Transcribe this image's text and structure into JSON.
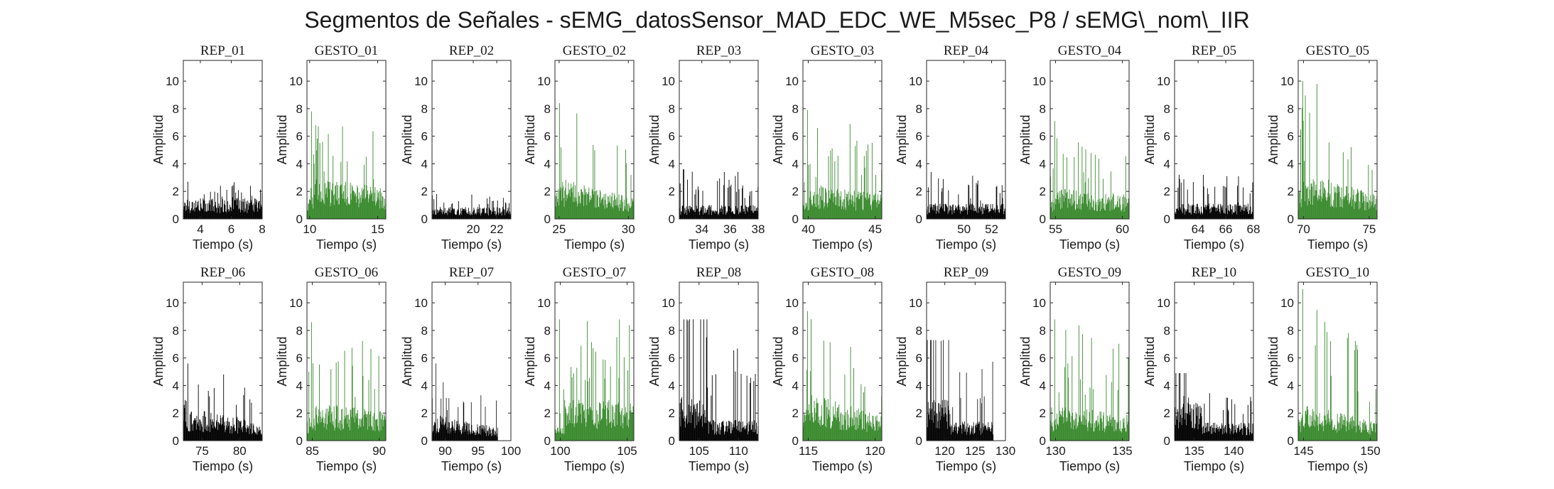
{
  "figure": {
    "title": "Segmentos de Señales - sEMG_datosSensor_MAD_EDC_WE_M5sec_P8 / sEMG\\_nom\\_IIR"
  },
  "colors": {
    "rep": "#000000",
    "gesto": "#3a8a2e",
    "axis": "#262626"
  },
  "chart_data": [
    {
      "type": "bar",
      "title": "REP_01",
      "xlabel": "Tiempo (s)",
      "ylabel": "Amplitud",
      "xlim": [
        2.9,
        8.0
      ],
      "ylim": [
        0,
        11.5
      ],
      "xticks": [
        4,
        6,
        8
      ],
      "yticks": [
        0,
        2,
        4,
        6,
        8,
        10
      ],
      "data_x_range": [
        2.9,
        8.0
      ],
      "series": [
        {
          "name": "REP_01",
          "color": "black",
          "baseline": 1.2,
          "peak": 2.7,
          "profile": "flat"
        }
      ]
    },
    {
      "type": "bar",
      "title": "GESTO_01",
      "xlabel": "Tiempo (s)",
      "ylabel": "Amplitud",
      "xlim": [
        9.8,
        15.6
      ],
      "ylim": [
        0,
        11.5
      ],
      "xticks": [
        10,
        15
      ],
      "yticks": [
        0,
        2,
        4,
        6,
        8,
        10
      ],
      "data_x_range": [
        9.8,
        15.6
      ],
      "series": [
        {
          "name": "GESTO_01",
          "color": "green",
          "baseline": 2.4,
          "peak": 7.8,
          "profile": "early"
        }
      ]
    },
    {
      "type": "bar",
      "title": "REP_02",
      "xlabel": "Tiempo (s)",
      "ylabel": "Amplitud",
      "xlim": [
        16.5,
        23.2
      ],
      "ylim": [
        0,
        11.5
      ],
      "xticks": [
        20,
        22
      ],
      "yticks": [
        0,
        2,
        4,
        6,
        8,
        10
      ],
      "data_x_range": [
        16.5,
        23.2
      ],
      "series": [
        {
          "name": "REP_02",
          "color": "black",
          "baseline": 0.7,
          "peak": 1.8,
          "profile": "flat"
        }
      ]
    },
    {
      "type": "bar",
      "title": "GESTO_02",
      "xlabel": "Tiempo (s)",
      "ylabel": "Amplitud",
      "xlim": [
        24.7,
        30.4
      ],
      "ylim": [
        0,
        11.5
      ],
      "xticks": [
        25,
        30
      ],
      "yticks": [
        0,
        2,
        4,
        6,
        8,
        10
      ],
      "data_x_range": [
        24.7,
        30.4
      ],
      "series": [
        {
          "name": "GESTO_02",
          "color": "green",
          "baseline": 2.2,
          "peak": 8.4,
          "profile": "decay"
        }
      ]
    },
    {
      "type": "bar",
      "title": "REP_03",
      "xlabel": "Tiempo (s)",
      "ylabel": "Amplitud",
      "xlim": [
        32.4,
        38.0
      ],
      "ylim": [
        0,
        11.5
      ],
      "xticks": [
        34,
        36,
        38
      ],
      "yticks": [
        0,
        2,
        4,
        6,
        8,
        10
      ],
      "data_x_range": [
        32.4,
        38.0
      ],
      "series": [
        {
          "name": "REP_03",
          "color": "black",
          "baseline": 0.8,
          "peak": 3.6,
          "profile": "flat"
        }
      ]
    },
    {
      "type": "bar",
      "title": "GESTO_03",
      "xlabel": "Tiempo (s)",
      "ylabel": "Amplitud",
      "xlim": [
        39.6,
        45.5
      ],
      "ylim": [
        0,
        11.5
      ],
      "xticks": [
        40,
        45
      ],
      "yticks": [
        0,
        2,
        4,
        6,
        8,
        10
      ],
      "data_x_range": [
        39.6,
        45.5
      ],
      "series": [
        {
          "name": "GESTO_03",
          "color": "green",
          "baseline": 2.0,
          "peak": 7.9,
          "profile": "early"
        }
      ]
    },
    {
      "type": "bar",
      "title": "REP_04",
      "xlabel": "Tiempo (s)",
      "ylabel": "Amplitud",
      "xlim": [
        47.3,
        53.0
      ],
      "ylim": [
        0,
        11.5
      ],
      "xticks": [
        50,
        52
      ],
      "yticks": [
        0,
        2,
        4,
        6,
        8,
        10
      ],
      "data_x_range": [
        47.3,
        53.0
      ],
      "series": [
        {
          "name": "REP_04",
          "color": "black",
          "baseline": 0.9,
          "peak": 3.4,
          "profile": "flat"
        }
      ]
    },
    {
      "type": "bar",
      "title": "GESTO_04",
      "xlabel": "Tiempo (s)",
      "ylabel": "Amplitud",
      "xlim": [
        54.6,
        60.5
      ],
      "ylim": [
        0,
        11.5
      ],
      "xticks": [
        55,
        60
      ],
      "yticks": [
        0,
        2,
        4,
        6,
        8,
        10
      ],
      "data_x_range": [
        54.6,
        60.5
      ],
      "series": [
        {
          "name": "GESTO_04",
          "color": "green",
          "baseline": 1.8,
          "peak": 7.1,
          "profile": "early"
        }
      ]
    },
    {
      "type": "bar",
      "title": "REP_05",
      "xlabel": "Tiempo (s)",
      "ylabel": "Amplitud",
      "xlim": [
        62.3,
        68.0
      ],
      "ylim": [
        0,
        11.5
      ],
      "xticks": [
        64,
        66,
        68
      ],
      "yticks": [
        0,
        2,
        4,
        6,
        8,
        10
      ],
      "data_x_range": [
        62.3,
        68.0
      ],
      "series": [
        {
          "name": "REP_05",
          "color": "black",
          "baseline": 0.9,
          "peak": 3.2,
          "profile": "flat"
        }
      ]
    },
    {
      "type": "bar",
      "title": "GESTO_05",
      "xlabel": "Tiempo (s)",
      "ylabel": "Amplitud",
      "xlim": [
        69.6,
        75.6
      ],
      "ylim": [
        0,
        11.5
      ],
      "xticks": [
        70,
        75
      ],
      "yticks": [
        0,
        2,
        4,
        6,
        8,
        10
      ],
      "data_x_range": [
        69.6,
        75.6
      ],
      "series": [
        {
          "name": "GESTO_05",
          "color": "green",
          "baseline": 2.6,
          "peak": 10.0,
          "profile": "decay"
        }
      ]
    },
    {
      "type": "bar",
      "title": "REP_06",
      "xlabel": "Tiempo (s)",
      "ylabel": "Amplitud",
      "xlim": [
        72.5,
        83.0
      ],
      "ylim": [
        0,
        11.5
      ],
      "xticks": [
        75,
        80
      ],
      "yticks": [
        0,
        2,
        4,
        6,
        8,
        10
      ],
      "data_x_range": [
        72.5,
        83.0
      ],
      "series": [
        {
          "name": "REP_06",
          "color": "black",
          "baseline": 1.8,
          "peak": 5.6,
          "profile": "decay"
        }
      ]
    },
    {
      "type": "bar",
      "title": "GESTO_06",
      "xlabel": "Tiempo (s)",
      "ylabel": "Amplitud",
      "xlim": [
        84.6,
        90.5
      ],
      "ylim": [
        0,
        11.5
      ],
      "xticks": [
        85,
        90
      ],
      "yticks": [
        0,
        2,
        4,
        6,
        8,
        10
      ],
      "data_x_range": [
        84.6,
        90.5
      ],
      "series": [
        {
          "name": "GESTO_06",
          "color": "green",
          "baseline": 2.2,
          "peak": 8.6,
          "profile": "early"
        }
      ]
    },
    {
      "type": "bar",
      "title": "REP_07",
      "xlabel": "Tiempo (s)",
      "ylabel": "Amplitud",
      "xlim": [
        88.0,
        100.0
      ],
      "ylim": [
        0,
        11.5
      ],
      "xticks": [
        90,
        95,
        100
      ],
      "yticks": [
        0,
        2,
        4,
        6,
        8,
        10
      ],
      "data_x_range": [
        88.0,
        98.0
      ],
      "series": [
        {
          "name": "REP_07",
          "color": "black",
          "baseline": 1.4,
          "peak": 5.6,
          "profile": "decay"
        }
      ]
    },
    {
      "type": "bar",
      "title": "GESTO_07",
      "xlabel": "Tiempo (s)",
      "ylabel": "Amplitud",
      "xlim": [
        99.6,
        105.5
      ],
      "ylim": [
        0,
        11.5
      ],
      "xticks": [
        100,
        105
      ],
      "yticks": [
        0,
        2,
        4,
        6,
        8,
        10
      ],
      "data_x_range": [
        99.6,
        105.5
      ],
      "series": [
        {
          "name": "GESTO_07",
          "color": "green",
          "baseline": 2.4,
          "peak": 8.8,
          "profile": "late"
        }
      ]
    },
    {
      "type": "bar",
      "title": "REP_08",
      "xlabel": "Tiempo (s)",
      "ylabel": "Amplitud",
      "xlim": [
        102.5,
        112.5
      ],
      "ylim": [
        0,
        11.5
      ],
      "xticks": [
        105,
        110
      ],
      "yticks": [
        0,
        2,
        4,
        6,
        8,
        10
      ],
      "data_x_range": [
        102.5,
        112.5
      ],
      "series": [
        {
          "name": "REP_08",
          "color": "black",
          "baseline": 1.6,
          "peak": 8.8,
          "profile": "step"
        }
      ]
    },
    {
      "type": "bar",
      "title": "GESTO_08",
      "xlabel": "Tiempo (s)",
      "ylabel": "Amplitud",
      "xlim": [
        114.6,
        120.5
      ],
      "ylim": [
        0,
        11.5
      ],
      "xticks": [
        115,
        120
      ],
      "yticks": [
        0,
        2,
        4,
        6,
        8,
        10
      ],
      "data_x_range": [
        114.6,
        120.5
      ],
      "series": [
        {
          "name": "GESTO_08",
          "color": "green",
          "baseline": 2.6,
          "peak": 9.4,
          "profile": "decay"
        }
      ]
    },
    {
      "type": "bar",
      "title": "REP_09",
      "xlabel": "Tiempo (s)",
      "ylabel": "Amplitud",
      "xlim": [
        117.0,
        130.0
      ],
      "ylim": [
        0,
        11.5
      ],
      "xticks": [
        120,
        125,
        130
      ],
      "yticks": [
        0,
        2,
        4,
        6,
        8,
        10
      ],
      "data_x_range": [
        117.0,
        128.0
      ],
      "series": [
        {
          "name": "REP_09",
          "color": "black",
          "baseline": 1.5,
          "peak": 7.3,
          "profile": "step"
        }
      ]
    },
    {
      "type": "bar",
      "title": "GESTO_09",
      "xlabel": "Tiempo (s)",
      "ylabel": "Amplitud",
      "xlim": [
        129.6,
        135.5
      ],
      "ylim": [
        0,
        11.5
      ],
      "xticks": [
        130,
        135
      ],
      "yticks": [
        0,
        2,
        4,
        6,
        8,
        10
      ],
      "data_x_range": [
        129.6,
        135.5
      ],
      "series": [
        {
          "name": "GESTO_09",
          "color": "green",
          "baseline": 2.0,
          "peak": 8.8,
          "profile": "early"
        }
      ]
    },
    {
      "type": "bar",
      "title": "REP_10",
      "xlabel": "Tiempo (s)",
      "ylabel": "Amplitud",
      "xlim": [
        132.5,
        142.5
      ],
      "ylim": [
        0,
        11.5
      ],
      "xticks": [
        135,
        140
      ],
      "yticks": [
        0,
        2,
        4,
        6,
        8,
        10
      ],
      "data_x_range": [
        132.5,
        142.5
      ],
      "series": [
        {
          "name": "REP_10",
          "color": "black",
          "baseline": 1.4,
          "peak": 4.9,
          "profile": "step"
        }
      ]
    },
    {
      "type": "bar",
      "title": "GESTO_10",
      "xlabel": "Tiempo (s)",
      "ylabel": "Amplitud",
      "xlim": [
        144.6,
        150.5
      ],
      "ylim": [
        0,
        11.5
      ],
      "xticks": [
        145,
        150
      ],
      "yticks": [
        0,
        2,
        4,
        6,
        8,
        10
      ],
      "data_x_range": [
        144.6,
        150.5
      ],
      "series": [
        {
          "name": "GESTO_10",
          "color": "green",
          "baseline": 2.0,
          "peak": 11.0,
          "profile": "decay"
        }
      ]
    }
  ]
}
